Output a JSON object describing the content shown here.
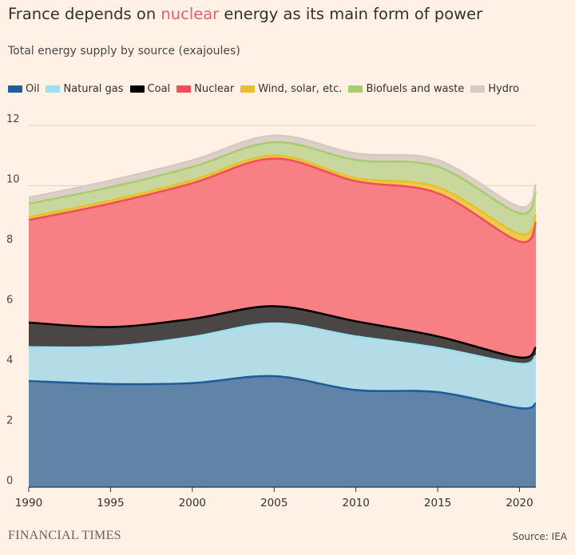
{
  "header": {
    "title_before": "France depends on ",
    "title_highlight": "nuclear",
    "title_after": " energy as its main form of power",
    "subtitle": "Total energy supply by source (exajoules)"
  },
  "footer": {
    "logo": "FINANCIAL TIMES",
    "source": "Source: IEA"
  },
  "colors": {
    "background": "#fff1e5",
    "highlight": "#e95d73"
  },
  "chart_data": {
    "type": "area",
    "stacked": true,
    "x": [
      1990,
      1995,
      2000,
      2005,
      2010,
      2015,
      2020,
      2021
    ],
    "xticks": [
      1990,
      1995,
      2000,
      2005,
      2010,
      2015,
      2020
    ],
    "yticks": [
      0,
      2,
      4,
      6,
      8,
      10,
      12
    ],
    "xlim": [
      1990,
      2021
    ],
    "ylim": [
      0,
      12
    ],
    "grid": true,
    "legend_position": "top",
    "series": [
      {
        "name": "Oil",
        "color": "#1f5c99",
        "fill": "#6083a8",
        "values": [
          3.52,
          3.42,
          3.45,
          3.68,
          3.22,
          3.15,
          2.62,
          2.78
        ]
      },
      {
        "name": "Natural gas",
        "color": "#9be0f0",
        "fill": "#b4dce6",
        "values": [
          1.12,
          1.24,
          1.53,
          1.75,
          1.78,
          1.47,
          1.47,
          1.58
        ]
      },
      {
        "name": "Coal",
        "color": "#000000",
        "fill": "#4a4646",
        "values": [
          0.82,
          0.65,
          0.6,
          0.57,
          0.5,
          0.38,
          0.21,
          0.28
        ]
      },
      {
        "name": "Nuclear",
        "color": "#f0505e",
        "fill": "#f68084",
        "values": [
          3.4,
          4.1,
          4.5,
          4.9,
          4.65,
          4.75,
          3.85,
          4.15
        ]
      },
      {
        "name": "Wind, solar, etc.",
        "color": "#eabf2c",
        "fill": "#f1c94e",
        "values": [
          0.1,
          0.1,
          0.1,
          0.1,
          0.1,
          0.2,
          0.25,
          0.25
        ]
      },
      {
        "name": "Biofuels and waste",
        "color": "#a8cc70",
        "fill": "#c8d89c",
        "values": [
          0.44,
          0.44,
          0.44,
          0.44,
          0.6,
          0.68,
          0.68,
          0.78
        ]
      },
      {
        "name": "Hydro",
        "color": "#d6cbc2",
        "fill": "#dccfc6",
        "values": [
          0.2,
          0.22,
          0.22,
          0.22,
          0.22,
          0.22,
          0.22,
          0.22
        ]
      }
    ]
  }
}
